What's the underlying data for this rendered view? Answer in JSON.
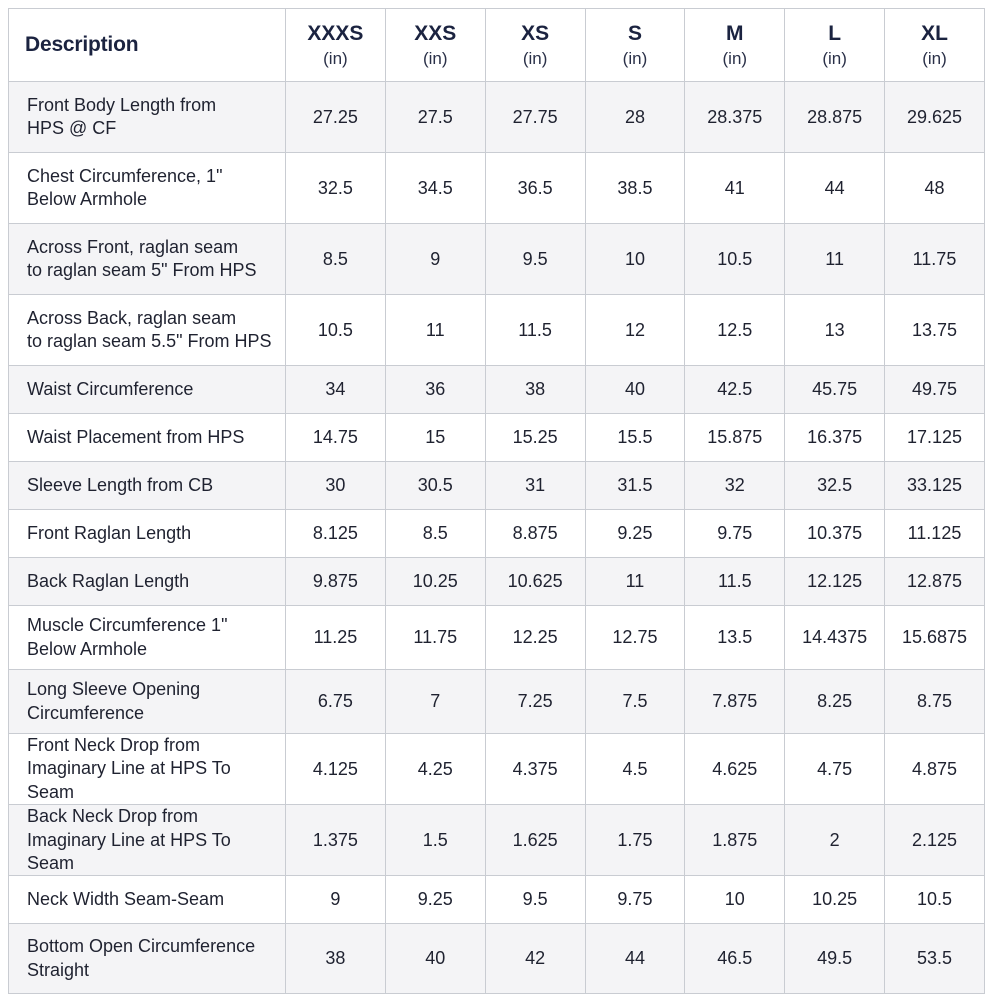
{
  "table": {
    "description_header": "Description",
    "sizes": [
      {
        "size": "XXXS",
        "unit": "(in)"
      },
      {
        "size": "XXS",
        "unit": "(in)"
      },
      {
        "size": "XS",
        "unit": "(in)"
      },
      {
        "size": "S",
        "unit": "(in)"
      },
      {
        "size": "M",
        "unit": "(in)"
      },
      {
        "size": "L",
        "unit": "(in)"
      },
      {
        "size": "XL",
        "unit": "(in)"
      }
    ],
    "rows": [
      {
        "label_lines": [
          "Front Body Length from",
          "HPS @ CF"
        ],
        "values": [
          "27.25",
          "27.5",
          "27.75",
          "28",
          "28.375",
          "28.875",
          "29.625"
        ]
      },
      {
        "label_lines": [
          "Chest Circumference, 1\"",
          "Below Armhole"
        ],
        "values": [
          "32.5",
          "34.5",
          "36.5",
          "38.5",
          "41",
          "44",
          "48"
        ]
      },
      {
        "label_lines": [
          "Across Front, raglan seam",
          "to raglan seam 5\" From HPS"
        ],
        "values": [
          "8.5",
          "9",
          "9.5",
          "10",
          "10.5",
          "11",
          "11.75"
        ]
      },
      {
        "label_lines": [
          "Across Back, raglan seam",
          "to raglan seam 5.5\" From HPS"
        ],
        "values": [
          "10.5",
          "11",
          "11.5",
          "12",
          "12.5",
          "13",
          "13.75"
        ]
      },
      {
        "label_lines": [
          "Waist Circumference"
        ],
        "values": [
          "34",
          "36",
          "38",
          "40",
          "42.5",
          "45.75",
          "49.75"
        ]
      },
      {
        "label_lines": [
          "Waist Placement from HPS"
        ],
        "values": [
          "14.75",
          "15",
          "15.25",
          "15.5",
          "15.875",
          "16.375",
          "17.125"
        ]
      },
      {
        "label_lines": [
          "Sleeve Length from CB"
        ],
        "values": [
          "30",
          "30.5",
          "31",
          "31.5",
          "32",
          "32.5",
          "33.125"
        ]
      },
      {
        "label_lines": [
          "Front Raglan Length"
        ],
        "values": [
          "8.125",
          "8.5",
          "8.875",
          "9.25",
          "9.75",
          "10.375",
          "11.125"
        ]
      },
      {
        "label_lines": [
          "Back Raglan Length"
        ],
        "values": [
          "9.875",
          "10.25",
          "10.625",
          "11",
          "11.5",
          "12.125",
          "12.875"
        ]
      },
      {
        "label_lines": [
          "Muscle Circumference 1\"",
          "Below Armhole"
        ],
        "values": [
          "11.25",
          "11.75",
          "12.25",
          "12.75",
          "13.5",
          "14.4375",
          "15.6875"
        ]
      },
      {
        "label_lines": [
          "Long Sleeve Opening",
          "Circumference"
        ],
        "values": [
          "6.75",
          "7",
          "7.25",
          "7.5",
          "7.875",
          "8.25",
          "8.75"
        ]
      },
      {
        "label_lines": [
          "Front Neck Drop from",
          "Imaginary Line at HPS To Seam"
        ],
        "values": [
          "4.125",
          "4.25",
          "4.375",
          "4.5",
          "4.625",
          "4.75",
          "4.875"
        ]
      },
      {
        "label_lines": [
          "Back Neck Drop from",
          "Imaginary Line at HPS To Seam"
        ],
        "values": [
          "1.375",
          "1.5",
          "1.625",
          "1.75",
          "1.875",
          "2",
          "2.125"
        ]
      },
      {
        "label_lines": [
          "Neck Width Seam-Seam"
        ],
        "values": [
          "9",
          "9.25",
          "9.5",
          "9.75",
          "10",
          "10.25",
          "10.5"
        ]
      },
      {
        "label_lines": [
          "Bottom Open Circumference",
          "Straight"
        ],
        "values": [
          "38",
          "40",
          "42",
          "44",
          "46.5",
          "49.5",
          "53.5"
        ]
      }
    ]
  }
}
